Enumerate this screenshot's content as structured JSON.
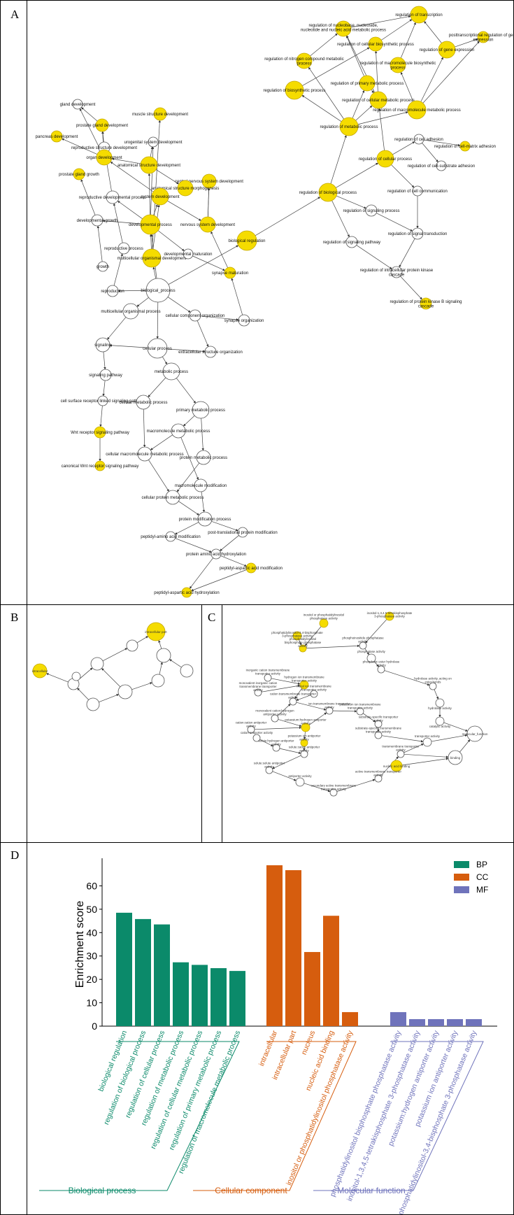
{
  "panel_labels": {
    "a": "A",
    "b": "B",
    "c": "C",
    "d": "D"
  },
  "colors": {
    "highlight": "#f5dc00",
    "highlight_stroke": "#c4a800",
    "plain_node": "#ffffff",
    "bp": "#0b8a6a",
    "cc": "#d65d0e",
    "mf": "#6f73bb"
  },
  "network_a": {
    "nodes": [
      {
        "label": "regulation of transcription",
        "hl": true
      },
      {
        "label": "posttranscriptional regulation of gene expression",
        "hl": true
      },
      {
        "label": "regulation of nucleobase, nucleoside, nucleotide and nucleic acid metabolic process",
        "hl": true
      },
      {
        "label": "regulation of cellular biosynthetic process",
        "hl": true
      },
      {
        "label": "regulation of gene expression",
        "hl": true
      },
      {
        "label": "regulation of nitrogen compound metabolic process",
        "hl": true
      },
      {
        "label": "regulation of macromolecule biosynthetic process",
        "hl": true
      },
      {
        "label": "regulation of primary metabolic process",
        "hl": true
      },
      {
        "label": "regulation of biosynthetic process",
        "hl": true
      },
      {
        "label": "regulation of cellular metabolic process",
        "hl": true
      },
      {
        "label": "regulation of macromolecule metabolic process",
        "hl": true
      },
      {
        "label": "regulation of metabolic process",
        "hl": true
      },
      {
        "label": "regulation of cell adhesion",
        "hl": false
      },
      {
        "label": "regulation of cell-matrix adhesion",
        "hl": true
      },
      {
        "label": "regulation of cellular process",
        "hl": true
      },
      {
        "label": "regulation of cell-substrate adhesion",
        "hl": false
      },
      {
        "label": "regulation of biological process",
        "hl": true
      },
      {
        "label": "regulation of cell communication",
        "hl": false
      },
      {
        "label": "regulation of signaling process",
        "hl": false
      },
      {
        "label": "regulation of signal transduction",
        "hl": false
      },
      {
        "label": "regulation of signaling pathway",
        "hl": false
      },
      {
        "label": "regulation of intracellular protein kinase cascade",
        "hl": false
      },
      {
        "label": "regulation of protein kinase B signaling cascade",
        "hl": true
      },
      {
        "label": "biological regulation",
        "hl": true
      },
      {
        "label": "gland development",
        "hl": false
      },
      {
        "label": "muscle structure development",
        "hl": true
      },
      {
        "label": "prostate gland development",
        "hl": true
      },
      {
        "label": "pancreas development",
        "hl": true
      },
      {
        "label": "urogenital system development",
        "hl": false
      },
      {
        "label": "reproductive structure development",
        "hl": false
      },
      {
        "label": "organ development",
        "hl": true
      },
      {
        "label": "anatomical structure development",
        "hl": true
      },
      {
        "label": "prostate gland growth",
        "hl": true
      },
      {
        "label": "central nervous system development",
        "hl": true
      },
      {
        "label": "anatomical structure morphogenesis",
        "hl": true
      },
      {
        "label": "system development",
        "hl": true
      },
      {
        "label": "reproductive developmental process",
        "hl": false
      },
      {
        "label": "developmental growth",
        "hl": false
      },
      {
        "label": "developmental process",
        "hl": true
      },
      {
        "label": "nervous system development",
        "hl": true
      },
      {
        "label": "reproductive process",
        "hl": false
      },
      {
        "label": "multicellular organismal development",
        "hl": true
      },
      {
        "label": "developmental maturation",
        "hl": false
      },
      {
        "label": "growth",
        "hl": false
      },
      {
        "label": "synapse maturation",
        "hl": true
      },
      {
        "label": "reproduction",
        "hl": false
      },
      {
        "label": "biological_process",
        "hl": false
      },
      {
        "label": "multicellular organismal process",
        "hl": false
      },
      {
        "label": "cellular component organization",
        "hl": false
      },
      {
        "label": "synapse organization",
        "hl": false
      },
      {
        "label": "signaling",
        "hl": false
      },
      {
        "label": "cellular process",
        "hl": false
      },
      {
        "label": "extracellular structure organization",
        "hl": false
      },
      {
        "label": "signaling pathway",
        "hl": false
      },
      {
        "label": "metabolic process",
        "hl": false
      },
      {
        "label": "cell surface receptor linked signaling pathway",
        "hl": false
      },
      {
        "label": "cellular metabolic process",
        "hl": false
      },
      {
        "label": "primary metabolic process",
        "hl": false
      },
      {
        "label": "Wnt receptor signaling pathway",
        "hl": true
      },
      {
        "label": "macromolecule metabolic process",
        "hl": false
      },
      {
        "label": "cellular macromolecule metabolic process",
        "hl": false
      },
      {
        "label": "protein metabolic process",
        "hl": false
      },
      {
        "label": "canonical Wnt receptor signaling pathway",
        "hl": true
      },
      {
        "label": "macromolecule modification",
        "hl": false
      },
      {
        "label": "cellular protein metabolic process",
        "hl": false
      },
      {
        "label": "protein modification process",
        "hl": false
      },
      {
        "label": "post-translational protein modification",
        "hl": false
      },
      {
        "label": "peptidyl-amino acid modification",
        "hl": false
      },
      {
        "label": "protein amino acid hydroxylation",
        "hl": false
      },
      {
        "label": "peptidyl-aspartic acid modification",
        "hl": true
      },
      {
        "label": "peptidyl-aspartic acid hydroxylation",
        "hl": true
      }
    ]
  },
  "network_b": {
    "nodes": [
      {
        "label": "intracellular part",
        "hl": true
      },
      {
        "label": "intracellular",
        "hl": true
      },
      {
        "label": "",
        "hl": false
      },
      {
        "label": "",
        "hl": false
      },
      {
        "label": "",
        "hl": false
      },
      {
        "label": "",
        "hl": false
      },
      {
        "label": "",
        "hl": false
      },
      {
        "label": "",
        "hl": false
      },
      {
        "label": "",
        "hl": false
      },
      {
        "label": "",
        "hl": false
      },
      {
        "label": "",
        "hl": false
      }
    ]
  },
  "network_c": {
    "nodes": [
      {
        "label": "inositol-1,3,4,5-tetrakisphosphate 3-phosphatase activity",
        "hl": true
      },
      {
        "label": "inositol or phosphatidylinositol phosphatase activity",
        "hl": true
      },
      {
        "label": "phosphatidylinositol-3,4-bisphosphate 3-phosphatase activity",
        "hl": true
      },
      {
        "label": "phosphoinositide phosphatase activity",
        "hl": false
      },
      {
        "label": "phosphatidylinositol bisphosphate phosphatase activity",
        "hl": true
      },
      {
        "label": "phosphatase activity",
        "hl": false
      },
      {
        "label": "phosphoric ester hydrolase activity",
        "hl": false
      },
      {
        "label": "hydrolase activity, acting on ester bonds",
        "hl": false
      },
      {
        "label": "inorganic cation transmembrane transporter activity",
        "hl": false
      },
      {
        "label": "hydrogen ion transmembrane transporter activity",
        "hl": true
      },
      {
        "label": "monovalent inorganic cation transmembrane transporter activity",
        "hl": false
      },
      {
        "label": "metal ion transmembrane transporter activity",
        "hl": false
      },
      {
        "label": "hydrolase activity",
        "hl": false
      },
      {
        "label": "cation transmembrane transporter activity",
        "hl": false
      },
      {
        "label": "ion transmembrane transporter activity",
        "hl": false
      },
      {
        "label": "catalytic activity",
        "hl": false
      },
      {
        "label": "monovalent cation:hydrogen antiporter activity",
        "hl": false
      },
      {
        "label": "potassium ion transmembrane transporter activity",
        "hl": false
      },
      {
        "label": "substrate-specific transporter activity",
        "hl": false
      },
      {
        "label": "molecular_function",
        "hl": false
      },
      {
        "label": "cation:cation antiporter activity",
        "hl": false
      },
      {
        "label": "potassium:hydrogen antiporter activity",
        "hl": true
      },
      {
        "label": "substrate-specific transmembrane transporter activity",
        "hl": false
      },
      {
        "label": "cation antiporter activity",
        "hl": false
      },
      {
        "label": "potassium ion antiporter activity",
        "hl": true
      },
      {
        "label": "transporter activity",
        "hl": false
      },
      {
        "label": "solute:hydrogen antiporter activity",
        "hl": false
      },
      {
        "label": "solute:cation antiporter activity",
        "hl": false
      },
      {
        "label": "transmembrane transporter activity",
        "hl": false
      },
      {
        "label": "binding",
        "hl": false
      },
      {
        "label": "solute:solute antiporter activity",
        "hl": false
      },
      {
        "label": "nucleic acid binding",
        "hl": true
      },
      {
        "label": "antiporter activity",
        "hl": false
      },
      {
        "label": "active transmembrane transporter activity",
        "hl": false
      },
      {
        "label": "secondary active transmembrane transporter activity",
        "hl": false
      }
    ]
  },
  "chart_data": {
    "type": "bar",
    "ylabel": "Enrichment score",
    "ylim": [
      0,
      70
    ],
    "yticks": [
      0,
      10,
      20,
      30,
      40,
      50,
      60
    ],
    "legend": {
      "position": "top-right",
      "entries": [
        "BP",
        "CC",
        "MF"
      ]
    },
    "groups": [
      {
        "name": "Biological process",
        "legend": "BP",
        "categories": [
          "biological regulation",
          "regulation of biological process",
          "regulation of cellular process",
          "regulation of metabolic process",
          "regulation of cellular metabolic process",
          "regulation of primary metabolic process",
          "regulation of macromolecule metabolic process"
        ],
        "values": [
          48.5,
          45.8,
          43.5,
          27.3,
          26.2,
          24.8,
          23.6
        ]
      },
      {
        "name": "Cellular component",
        "legend": "CC",
        "categories": [
          "intracellular",
          "intracellular part",
          "nucleus",
          "nucleic acid binding",
          "inositol or phosphatidylinositol phosphatase activity"
        ],
        "values": [
          68.8,
          66.7,
          31.7,
          47.2,
          6.0
        ]
      },
      {
        "name": "Molecular function",
        "legend": "MF",
        "categories": [
          "phosphatidylinositol bisphosphate phosphatase activity",
          "inositol-1,3,4,5-tetrakisphosphate 3-phosphatase activity",
          "potassium:hydrogen antiporter activity",
          "potassium ion antiporter activity",
          "phosphatidylinositol-3,4-bisphosphate 3-phosphatase activity"
        ],
        "values": [
          6.0,
          3.0,
          3.0,
          3.0,
          3.0
        ]
      }
    ]
  }
}
